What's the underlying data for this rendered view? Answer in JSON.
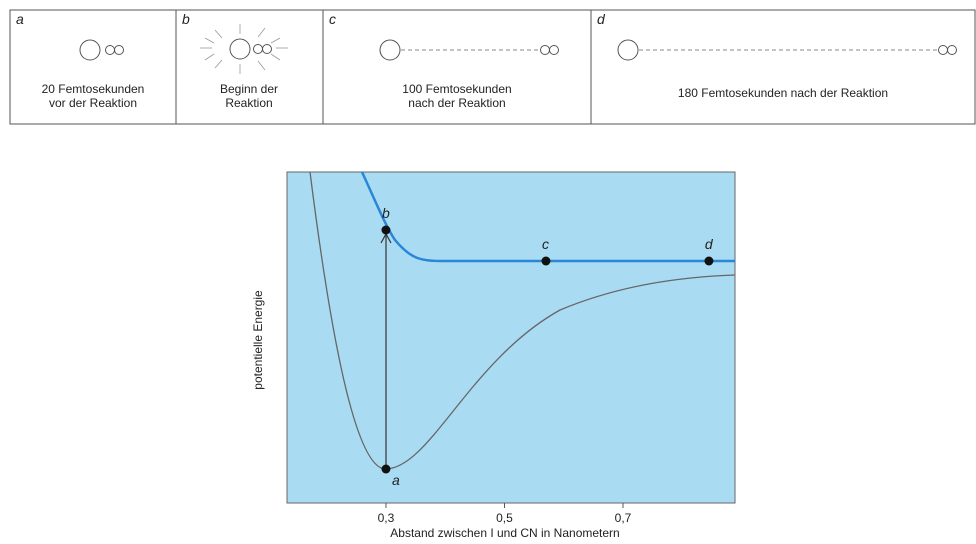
{
  "panels": [
    {
      "label": "a",
      "caption": [
        "20 Femtosekunden",
        "vor der Reaktion"
      ]
    },
    {
      "label": "b",
      "caption": [
        "Beginn der",
        "Reaktion"
      ]
    },
    {
      "label": "c",
      "caption": [
        "100 Femtosekunden",
        "nach der Reaktion"
      ]
    },
    {
      "label": "d",
      "caption": [
        "180 Femtosekunden nach der Reaktion"
      ]
    }
  ],
  "plot": {
    "xlabel": "Abstand zwischen I und CN in Nanometern",
    "ylabel": "potentielle Energie",
    "xlim": [
      0.133,
      0.889
    ],
    "xticks": [
      {
        "value": 0.3,
        "label": "0,3"
      },
      {
        "value": 0.5,
        "label": "0,5"
      },
      {
        "value": 0.7,
        "label": "0,7"
      }
    ],
    "points": [
      {
        "label": "a",
        "x": 0.3
      },
      {
        "label": "b",
        "x": 0.3
      },
      {
        "label": "c",
        "x": 0.57
      },
      {
        "label": "d",
        "x": 0.845
      }
    ]
  }
}
